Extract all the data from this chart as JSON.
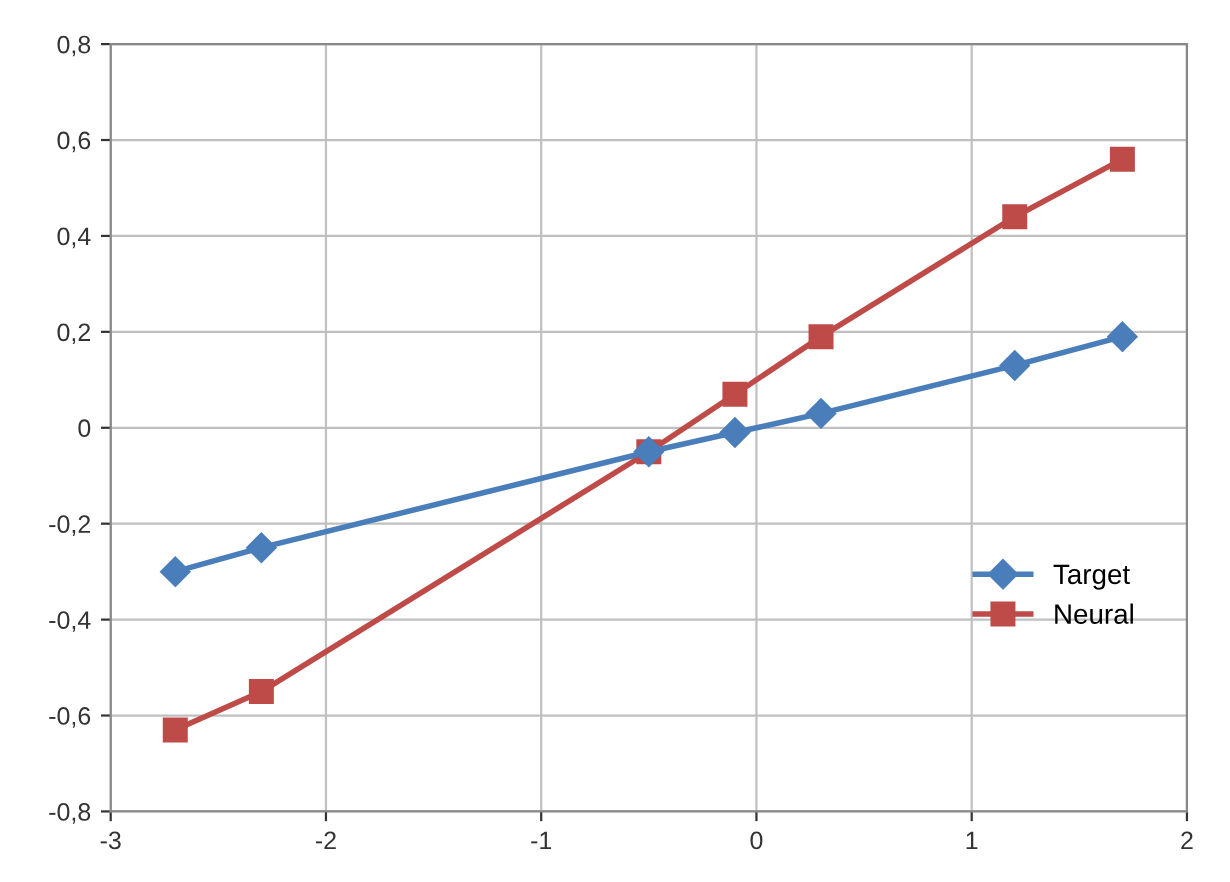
{
  "chart_data": {
    "type": "line",
    "xlim": [
      -3,
      2
    ],
    "xticks": [
      -3,
      -2,
      -1,
      0,
      1,
      2
    ],
    "ylim": [
      -0.8,
      0.8
    ],
    "yticks": [
      {
        "value": -0.8,
        "label": "-0,8"
      },
      {
        "value": -0.6,
        "label": "-0,6"
      },
      {
        "value": -0.4,
        "label": "-0,4"
      },
      {
        "value": -0.2,
        "label": "-0,2"
      },
      {
        "value": 0,
        "label": "0"
      },
      {
        "value": 0.2,
        "label": "0,2"
      },
      {
        "value": 0.4,
        "label": "0,4"
      },
      {
        "value": 0.6,
        "label": "0,6"
      },
      {
        "value": 0.8,
        "label": "0,8"
      }
    ],
    "grid": true,
    "legend": "right",
    "series": [
      {
        "name": "Target",
        "color": "#4a7ebb",
        "marker": "diamond",
        "x": [
          -2.7,
          -2.3,
          -0.5,
          -0.1,
          0.3,
          1.2,
          1.7
        ],
        "values": [
          -0.3,
          -0.25,
          -0.05,
          -0.01,
          0.03,
          0.13,
          0.19
        ]
      },
      {
        "name": "Neural",
        "color": "#be4b48",
        "marker": "square",
        "x": [
          -2.7,
          -2.3,
          -0.5,
          -0.1,
          0.3,
          1.2,
          1.7
        ],
        "values": [
          -0.63,
          -0.55,
          -0.05,
          0.07,
          0.19,
          0.44,
          0.56
        ]
      }
    ]
  }
}
